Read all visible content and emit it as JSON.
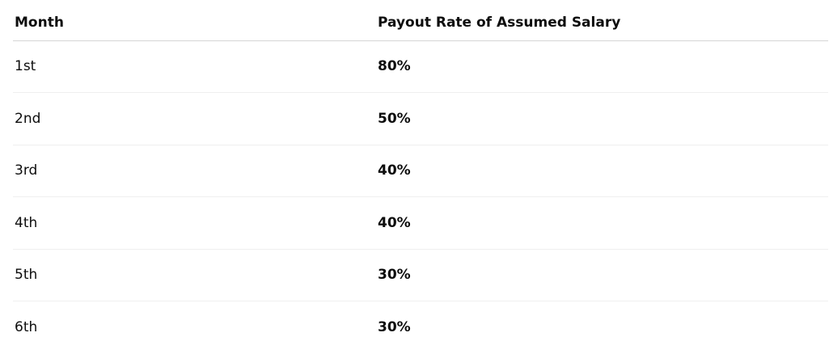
{
  "table": {
    "header": [
      "Month",
      "Payout Rate of Assumed Salary"
    ],
    "rows": [
      [
        "1st",
        "80%"
      ],
      [
        "2nd",
        "50%"
      ],
      [
        "3rd",
        "40%"
      ],
      [
        "4th",
        "40%"
      ],
      [
        "5th",
        "30%"
      ],
      [
        "6th",
        "30%"
      ]
    ]
  }
}
